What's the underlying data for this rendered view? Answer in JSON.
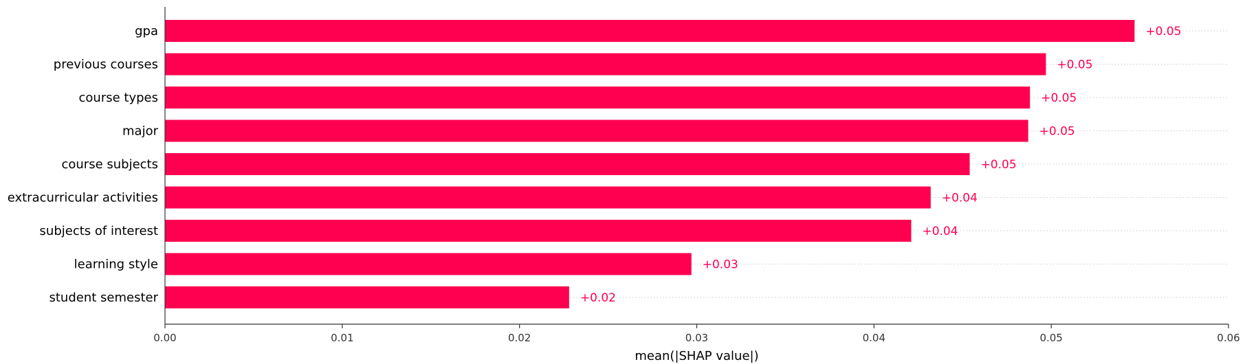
{
  "chart_data": {
    "type": "bar",
    "orientation": "horizontal",
    "categories": [
      "gpa",
      "previous courses",
      "course types",
      "major",
      "course subjects",
      "extracurricular activities",
      "subjects of interest",
      "learning style",
      "student semester"
    ],
    "values": [
      0.0547,
      0.0497,
      0.0488,
      0.0487,
      0.0454,
      0.0432,
      0.0421,
      0.0297,
      0.0228
    ],
    "data_labels": [
      "+0.05",
      "+0.05",
      "+0.05",
      "+0.05",
      "+0.05",
      "+0.04",
      "+0.04",
      "+0.03",
      "+0.02"
    ],
    "xlabel": "mean(|SHAP value|)",
    "xlim": [
      0,
      0.06
    ],
    "xticks": [
      0.0,
      0.01,
      0.02,
      0.03,
      0.04,
      0.05,
      0.06
    ],
    "xtick_labels": [
      "0.00",
      "0.01",
      "0.02",
      "0.03",
      "0.04",
      "0.05",
      "0.06"
    ],
    "bar_color": "#ff0051",
    "grid": "dotted row guides"
  }
}
